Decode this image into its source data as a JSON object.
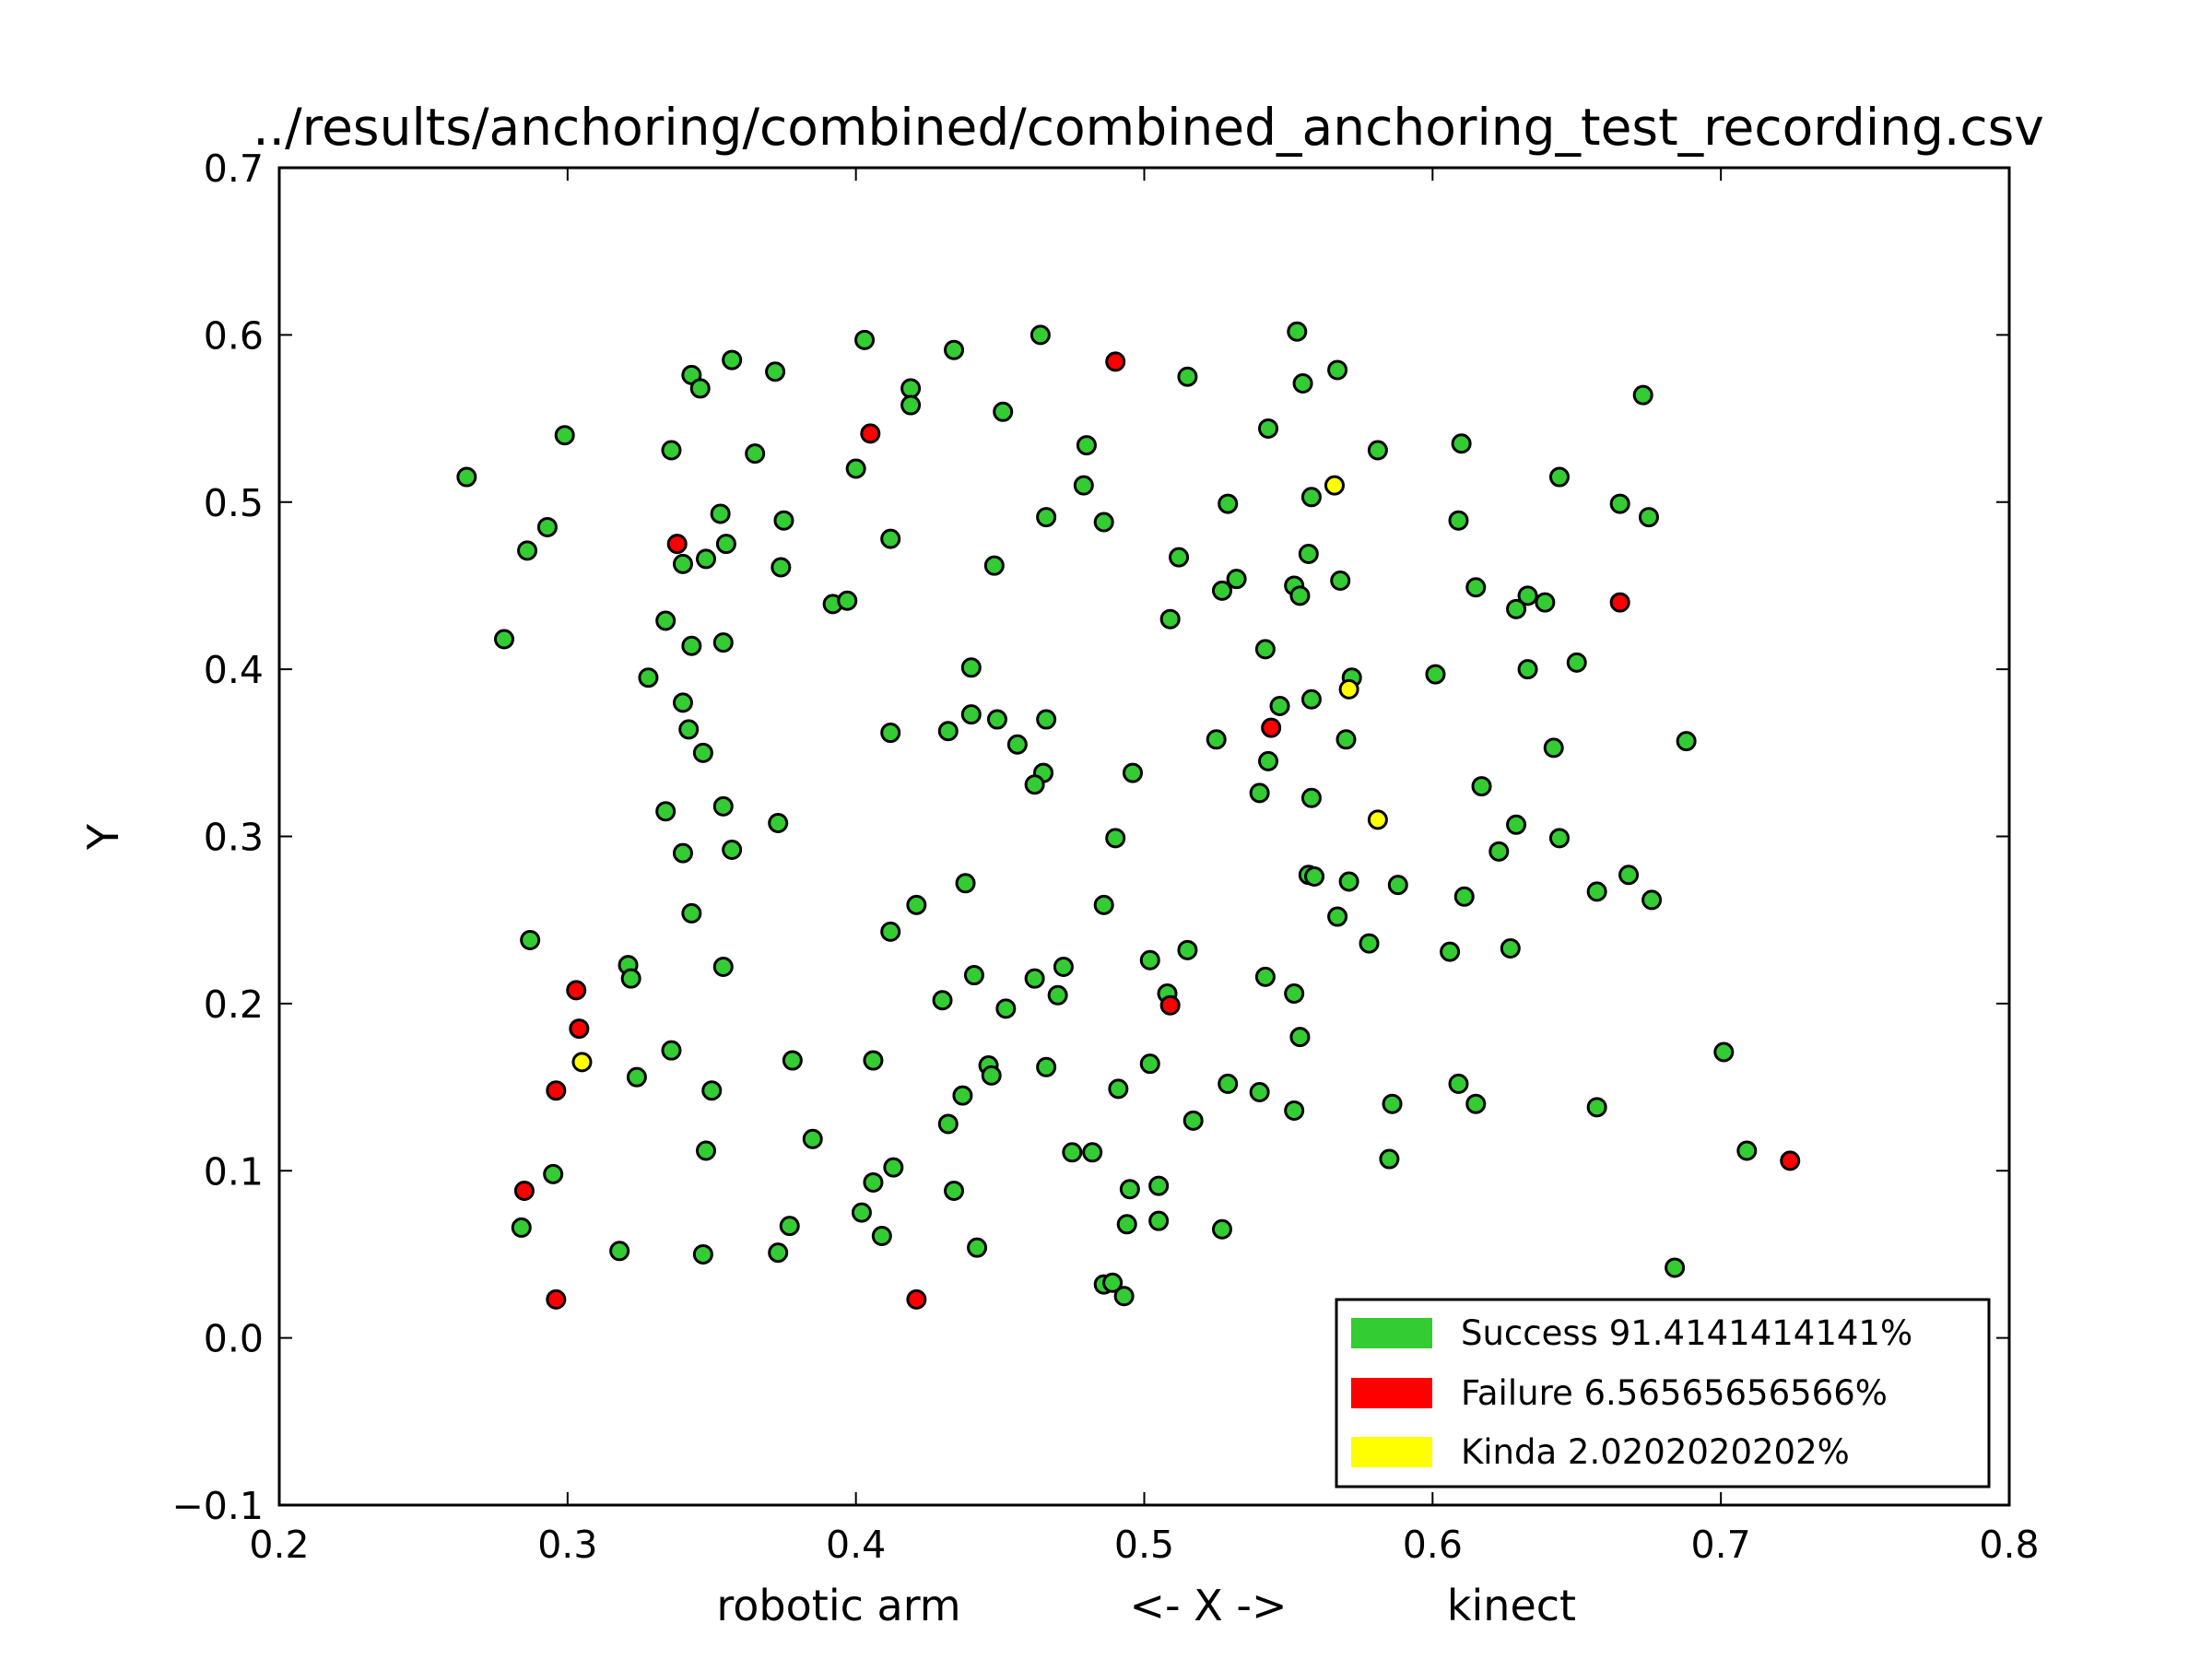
{
  "chart_data": {
    "type": "scatter",
    "title": "../results/anchoring/combined/combined_anchoring_test_recording.csv",
    "xlabel": {
      "left": "robotic arm",
      "center": "<- X ->",
      "right": "kinect"
    },
    "ylabel": "Y",
    "xlim": [
      0.2,
      0.8
    ],
    "ylim": [
      -0.1,
      0.7
    ],
    "xticks": [
      "0.2",
      "0.3",
      "0.4",
      "0.5",
      "0.6",
      "0.7",
      "0.8"
    ],
    "yticks": [
      "−0.1",
      "0.0",
      "0.1",
      "0.2",
      "0.3",
      "0.4",
      "0.5",
      "0.6",
      "0.7"
    ],
    "grid": false,
    "legend_position": "bottom-right",
    "series": [
      {
        "name": "Success 91.4141414141%",
        "color": "#33cc33",
        "points": [
          [
            0.265,
            0.515
          ],
          [
            0.299,
            0.54
          ],
          [
            0.286,
            0.471
          ],
          [
            0.293,
            0.485
          ],
          [
            0.278,
            0.418
          ],
          [
            0.336,
            0.531
          ],
          [
            0.343,
            0.576
          ],
          [
            0.346,
            0.568
          ],
          [
            0.357,
            0.585
          ],
          [
            0.372,
            0.578
          ],
          [
            0.365,
            0.529
          ],
          [
            0.353,
            0.493
          ],
          [
            0.355,
            0.475
          ],
          [
            0.348,
            0.466
          ],
          [
            0.34,
            0.463
          ],
          [
            0.375,
            0.489
          ],
          [
            0.374,
            0.461
          ],
          [
            0.334,
            0.429
          ],
          [
            0.343,
            0.414
          ],
          [
            0.354,
            0.416
          ],
          [
            0.328,
            0.395
          ],
          [
            0.34,
            0.38
          ],
          [
            0.342,
            0.364
          ],
          [
            0.347,
            0.35
          ],
          [
            0.334,
            0.315
          ],
          [
            0.354,
            0.318
          ],
          [
            0.34,
            0.29
          ],
          [
            0.357,
            0.292
          ],
          [
            0.373,
            0.308
          ],
          [
            0.343,
            0.254
          ],
          [
            0.287,
            0.238
          ],
          [
            0.321,
            0.223
          ],
          [
            0.322,
            0.215
          ],
          [
            0.354,
            0.222
          ],
          [
            0.336,
            0.172
          ],
          [
            0.324,
            0.156
          ],
          [
            0.35,
            0.148
          ],
          [
            0.378,
            0.166
          ],
          [
            0.348,
            0.112
          ],
          [
            0.385,
            0.119
          ],
          [
            0.295,
            0.098
          ],
          [
            0.284,
            0.066
          ],
          [
            0.318,
            0.052
          ],
          [
            0.347,
            0.05
          ],
          [
            0.373,
            0.051
          ],
          [
            0.377,
            0.067
          ],
          [
            0.403,
            0.597
          ],
          [
            0.419,
            0.568
          ],
          [
            0.419,
            0.558
          ],
          [
            0.434,
            0.591
          ],
          [
            0.464,
            0.6
          ],
          [
            0.451,
            0.554
          ],
          [
            0.4,
            0.52
          ],
          [
            0.412,
            0.478
          ],
          [
            0.392,
            0.439
          ],
          [
            0.397,
            0.441
          ],
          [
            0.448,
            0.462
          ],
          [
            0.466,
            0.491
          ],
          [
            0.48,
            0.534
          ],
          [
            0.479,
            0.51
          ],
          [
            0.486,
            0.488
          ],
          [
            0.44,
            0.401
          ],
          [
            0.44,
            0.373
          ],
          [
            0.449,
            0.37
          ],
          [
            0.466,
            0.37
          ],
          [
            0.432,
            0.363
          ],
          [
            0.412,
            0.362
          ],
          [
            0.456,
            0.355
          ],
          [
            0.465,
            0.338
          ],
          [
            0.462,
            0.331
          ],
          [
            0.421,
            0.259
          ],
          [
            0.438,
            0.272
          ],
          [
            0.412,
            0.243
          ],
          [
            0.441,
            0.217
          ],
          [
            0.43,
            0.202
          ],
          [
            0.452,
            0.197
          ],
          [
            0.462,
            0.215
          ],
          [
            0.472,
            0.222
          ],
          [
            0.47,
            0.205
          ],
          [
            0.446,
            0.163
          ],
          [
            0.447,
            0.157
          ],
          [
            0.466,
            0.162
          ],
          [
            0.406,
            0.166
          ],
          [
            0.437,
            0.145
          ],
          [
            0.432,
            0.128
          ],
          [
            0.406,
            0.093
          ],
          [
            0.413,
            0.102
          ],
          [
            0.434,
            0.088
          ],
          [
            0.402,
            0.075
          ],
          [
            0.409,
            0.061
          ],
          [
            0.442,
            0.054
          ],
          [
            0.475,
            0.111
          ],
          [
            0.482,
            0.111
          ],
          [
            0.486,
            0.259
          ],
          [
            0.49,
            0.299
          ],
          [
            0.496,
            0.338
          ],
          [
            0.491,
            0.149
          ],
          [
            0.502,
            0.164
          ],
          [
            0.502,
            0.226
          ],
          [
            0.508,
            0.206
          ],
          [
            0.515,
            0.232
          ],
          [
            0.517,
            0.13
          ],
          [
            0.495,
            0.089
          ],
          [
            0.505,
            0.091
          ],
          [
            0.494,
            0.068
          ],
          [
            0.505,
            0.07
          ],
          [
            0.486,
            0.032
          ],
          [
            0.489,
            0.033
          ],
          [
            0.493,
            0.025
          ],
          [
            0.515,
            0.575
          ],
          [
            0.509,
            0.43
          ],
          [
            0.512,
            0.467
          ],
          [
            0.529,
            0.499
          ],
          [
            0.527,
            0.447
          ],
          [
            0.532,
            0.454
          ],
          [
            0.525,
            0.358
          ],
          [
            0.529,
            0.152
          ],
          [
            0.527,
            0.065
          ],
          [
            0.553,
            0.602
          ],
          [
            0.555,
            0.571
          ],
          [
            0.567,
            0.579
          ],
          [
            0.543,
            0.544
          ],
          [
            0.558,
            0.503
          ],
          [
            0.557,
            0.469
          ],
          [
            0.552,
            0.45
          ],
          [
            0.554,
            0.444
          ],
          [
            0.568,
            0.453
          ],
          [
            0.581,
            0.531
          ],
          [
            0.542,
            0.412
          ],
          [
            0.547,
            0.378
          ],
          [
            0.558,
            0.382
          ],
          [
            0.572,
            0.395
          ],
          [
            0.57,
            0.358
          ],
          [
            0.543,
            0.345
          ],
          [
            0.54,
            0.326
          ],
          [
            0.558,
            0.323
          ],
          [
            0.557,
            0.277
          ],
          [
            0.559,
            0.276
          ],
          [
            0.571,
            0.273
          ],
          [
            0.588,
            0.271
          ],
          [
            0.567,
            0.252
          ],
          [
            0.578,
            0.236
          ],
          [
            0.542,
            0.216
          ],
          [
            0.552,
            0.206
          ],
          [
            0.554,
            0.18
          ],
          [
            0.54,
            0.147
          ],
          [
            0.552,
            0.136
          ],
          [
            0.586,
            0.14
          ],
          [
            0.585,
            0.107
          ],
          [
            0.61,
            0.535
          ],
          [
            0.609,
            0.489
          ],
          [
            0.615,
            0.449
          ],
          [
            0.601,
            0.397
          ],
          [
            0.629,
            0.436
          ],
          [
            0.633,
            0.444
          ],
          [
            0.639,
            0.44
          ],
          [
            0.633,
            0.4
          ],
          [
            0.65,
            0.404
          ],
          [
            0.644,
            0.515
          ],
          [
            0.665,
            0.499
          ],
          [
            0.675,
            0.491
          ],
          [
            0.673,
            0.564
          ],
          [
            0.642,
            0.353
          ],
          [
            0.617,
            0.33
          ],
          [
            0.629,
            0.307
          ],
          [
            0.623,
            0.291
          ],
          [
            0.644,
            0.299
          ],
          [
            0.611,
            0.264
          ],
          [
            0.606,
            0.231
          ],
          [
            0.627,
            0.233
          ],
          [
            0.657,
            0.267
          ],
          [
            0.668,
            0.277
          ],
          [
            0.676,
            0.262
          ],
          [
            0.688,
            0.357
          ],
          [
            0.609,
            0.152
          ],
          [
            0.615,
            0.14
          ],
          [
            0.657,
            0.138
          ],
          [
            0.701,
            0.171
          ],
          [
            0.709,
            0.112
          ],
          [
            0.684,
            0.042
          ]
        ]
      },
      {
        "name": "Failure 6.56565656566%",
        "color": "#ff0000",
        "points": [
          [
            0.338,
            0.475
          ],
          [
            0.405,
            0.541
          ],
          [
            0.49,
            0.584
          ],
          [
            0.303,
            0.208
          ],
          [
            0.304,
            0.185
          ],
          [
            0.296,
            0.148
          ],
          [
            0.285,
            0.088
          ],
          [
            0.296,
            0.023
          ],
          [
            0.421,
            0.023
          ],
          [
            0.509,
            0.199
          ],
          [
            0.544,
            0.365
          ],
          [
            0.665,
            0.44
          ],
          [
            0.724,
            0.106
          ]
        ]
      },
      {
        "name": "Kinda 2.0202020202%",
        "color": "#ffff00",
        "points": [
          [
            0.566,
            0.51
          ],
          [
            0.571,
            0.388
          ],
          [
            0.581,
            0.31
          ],
          [
            0.305,
            0.165
          ]
        ]
      }
    ]
  }
}
